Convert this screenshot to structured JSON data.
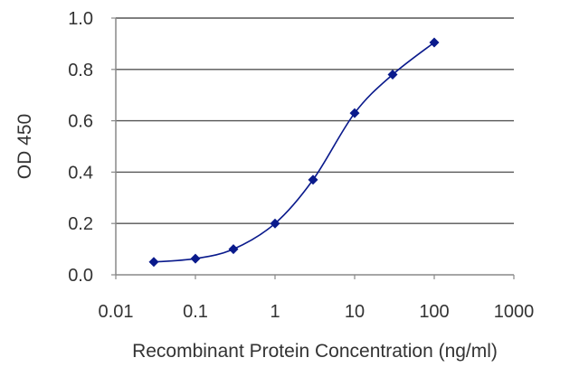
{
  "chart_data": {
    "type": "scatter",
    "title": "",
    "xlabel": "Recombinant Protein Concentration (ng/ml)",
    "ylabel": "OD 450",
    "x_scale": "log",
    "xlim": [
      0.01,
      1000
    ],
    "ylim": [
      0.0,
      1.0
    ],
    "x_ticks": [
      "0.01",
      "0.1",
      "1",
      "10",
      "100",
      "1000"
    ],
    "x_tick_values": [
      0.01,
      0.1,
      1,
      10,
      100,
      1000
    ],
    "y_ticks": [
      "0.0",
      "0.2",
      "0.4",
      "0.6",
      "0.8",
      "1.0"
    ],
    "y_tick_values": [
      0.0,
      0.2,
      0.4,
      0.6,
      0.8,
      1.0
    ],
    "grid": "horizontal",
    "legend": "none",
    "series": [
      {
        "x": [
          0.03,
          0.1,
          0.3,
          1,
          3,
          10,
          30,
          100
        ],
        "y": [
          0.05,
          0.063,
          0.1,
          0.2,
          0.37,
          0.63,
          0.78,
          0.905
        ]
      }
    ],
    "colors": {
      "series": "#0a1a8c",
      "grid": "#555555",
      "frame": "#888888"
    }
  }
}
